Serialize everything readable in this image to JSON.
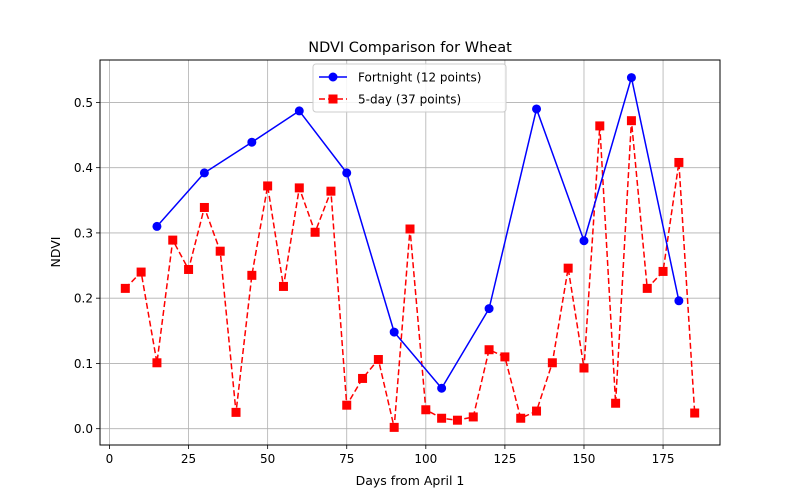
{
  "chart_data": {
    "type": "line",
    "title": "NDVI Comparison for Wheat",
    "xlabel": "Days from April 1",
    "ylabel": "NDVI",
    "xlim": [
      -3,
      193
    ],
    "ylim": [
      -0.025,
      0.565
    ],
    "xticks": [
      0,
      25,
      50,
      75,
      100,
      125,
      150,
      175
    ],
    "yticks": [
      0.0,
      0.1,
      0.2,
      0.3,
      0.4,
      0.5
    ],
    "xtick_labels": [
      "0",
      "25",
      "50",
      "75",
      "100",
      "125",
      "150",
      "175"
    ],
    "ytick_labels": [
      "0.0",
      "0.1",
      "0.2",
      "0.3",
      "0.4",
      "0.5"
    ],
    "grid": true,
    "legend_position": "top-center",
    "series": [
      {
        "name": "Fortnight (12 points)",
        "color": "#0000ff",
        "line_style": "solid",
        "marker": "circle",
        "x": [
          15,
          30,
          45,
          60,
          75,
          90,
          105,
          120,
          135,
          150,
          165,
          180
        ],
        "y": [
          0.31,
          0.392,
          0.439,
          0.487,
          0.392,
          0.148,
          0.062,
          0.184,
          0.49,
          0.288,
          0.538,
          0.196
        ]
      },
      {
        "name": "5-day (37 points)",
        "color": "#ff0000",
        "line_style": "dashed",
        "marker": "square",
        "x": [
          5,
          10,
          15,
          20,
          25,
          30,
          35,
          40,
          45,
          50,
          55,
          60,
          65,
          70,
          75,
          80,
          85,
          90,
          95,
          100,
          105,
          110,
          115,
          120,
          125,
          130,
          135,
          140,
          145,
          150,
          155,
          160,
          165,
          170,
          175,
          180,
          185
        ],
        "y": [
          0.215,
          0.24,
          0.101,
          0.289,
          0.244,
          0.339,
          0.272,
          0.025,
          0.235,
          0.372,
          0.218,
          0.369,
          0.301,
          0.364,
          0.036,
          0.077,
          0.106,
          0.002,
          0.306,
          0.029,
          0.016,
          0.013,
          0.018,
          0.121,
          0.11,
          0.016,
          0.027,
          0.101,
          0.246,
          0.093,
          0.464,
          0.039,
          0.472,
          0.215,
          0.241,
          0.408,
          0.024
        ]
      }
    ]
  }
}
